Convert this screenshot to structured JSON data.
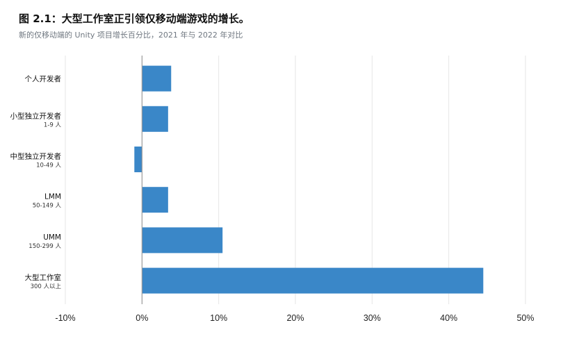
{
  "header": {
    "title": "图 2.1：大型工作室正引领仅移动端游戏的增长。",
    "subtitle": "新的仅移动端的 Unity 项目增长百分比，2021 年与 2022 年对比"
  },
  "colors": {
    "bar": "#3a87c8",
    "grid": "#e6e6e6",
    "zero_line": "#9a9a9a"
  },
  "chart_data": {
    "type": "bar",
    "orientation": "horizontal",
    "title": "图 2.1：大型工作室正引领仅移动端游戏的增长。",
    "subtitle": "新的仅移动端的 Unity 项目增长百分比，2021 年与 2022 年对比",
    "xlabel": "",
    "ylabel": "",
    "xlim": [
      -10,
      50
    ],
    "x_ticks": [
      -10,
      0,
      10,
      20,
      30,
      40,
      50
    ],
    "x_tick_labels": [
      "-10%",
      "0%",
      "10%",
      "20%",
      "30%",
      "40%",
      "50%"
    ],
    "grid": true,
    "legend": "none",
    "categories": [
      {
        "label": "个人开发者",
        "sublabel": ""
      },
      {
        "label": "小型独立开发者",
        "sublabel": "1-9 人"
      },
      {
        "label": "中型独立开发者",
        "sublabel": "10-49 人"
      },
      {
        "label": "LMM",
        "sublabel": "50-149 人"
      },
      {
        "label": "UMM",
        "sublabel": "150-299 人"
      },
      {
        "label": "大型工作室",
        "sublabel": "300 人以上"
      }
    ],
    "values": [
      3.8,
      3.4,
      -1.0,
      3.4,
      10.5,
      44.5
    ]
  }
}
